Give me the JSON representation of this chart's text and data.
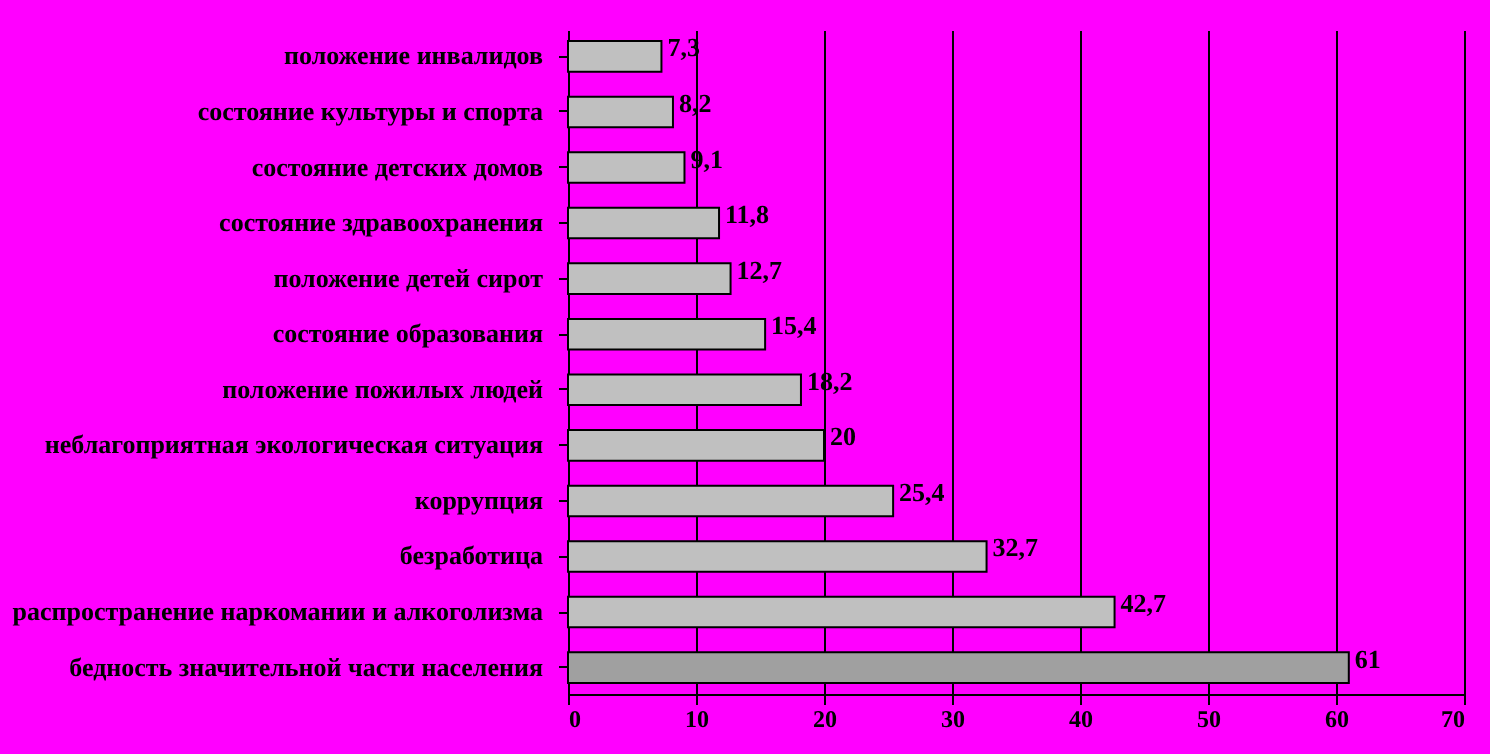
{
  "chart_data": {
    "type": "bar",
    "orientation": "horizontal",
    "categories": [
      "положение инвалидов",
      "состояние культуры и спорта",
      "состояние детских домов",
      "состояние здравоохранения",
      "положение детей сирот",
      "состояние образования",
      "положение пожилых людей",
      "неблагоприятная экологическая ситуация",
      "коррупция",
      "безработица",
      "распространение наркомании и алкоголизма",
      "бедность значительной части населения"
    ],
    "values": [
      7.3,
      8.2,
      9.1,
      11.8,
      12.7,
      15.4,
      18.2,
      20,
      25.4,
      32.7,
      42.7,
      61
    ],
    "colors": [
      "#c0c0c0",
      "#c0c0c0",
      "#c0c0c0",
      "#c0c0c0",
      "#c0c0c0",
      "#c0c0c0",
      "#c0c0c0",
      "#c0c0c0",
      "#c0c0c0",
      "#c0c0c0",
      "#c0c0c0",
      "#a0a0a0"
    ],
    "value_labels": [
      "7,3",
      "8,2",
      "9,1",
      "11,8",
      "12,7",
      "15,4",
      "18,2",
      "20",
      "25,4",
      "32,7",
      "42,7",
      "61"
    ],
    "xlim": [
      0,
      70
    ],
    "xticks": [
      0,
      10,
      20,
      30,
      40,
      50,
      60,
      70
    ],
    "grid": "x"
  }
}
